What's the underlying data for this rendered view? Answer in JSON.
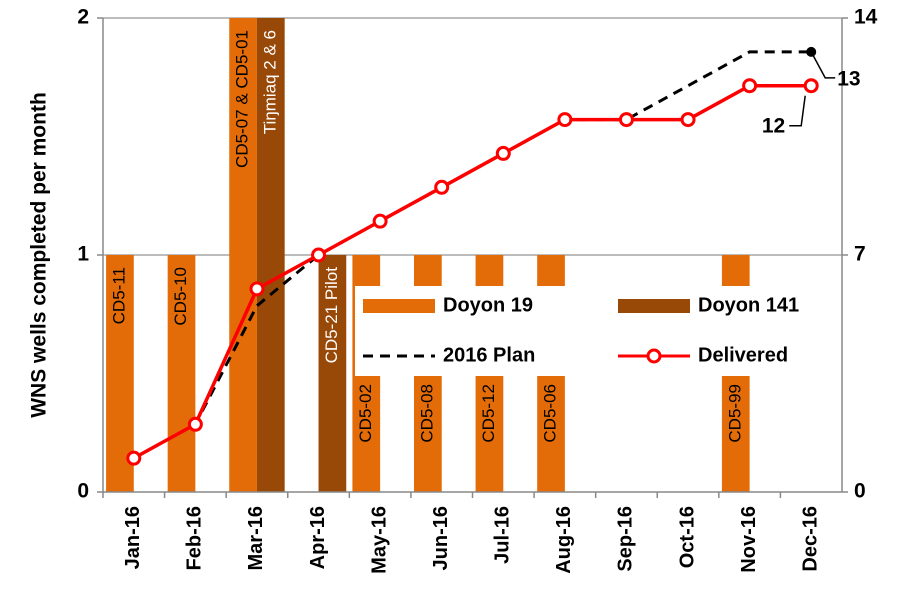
{
  "chart_data": {
    "type": "bar_line",
    "y_label": "WNS wells completed per month",
    "categories": [
      "Jan-16",
      "Feb-16",
      "Mar-16",
      "Apr-16",
      "May-16",
      "Jun-16",
      "Jul-16",
      "Aug-16",
      "Sep-16",
      "Oct-16",
      "Nov-16",
      "Dec-16"
    ],
    "ylim": [
      0,
      2
    ],
    "yticks": [
      0,
      1,
      2
    ],
    "y2lim": [
      0,
      14
    ],
    "y2ticks": [
      0,
      7,
      14
    ],
    "grid": true,
    "series": [
      {
        "name": "Doyon 19",
        "kind": "bar",
        "color": "#e36c09",
        "values": [
          1,
          1,
          2,
          0,
          1,
          1,
          1,
          1,
          0,
          0,
          1,
          0
        ],
        "labels": [
          "CD5-11",
          "CD5-10",
          "CD5-07 & CD5-01",
          null,
          "CD5-02",
          "CD5-08",
          "CD5-12",
          "CD5-06",
          null,
          null,
          "CD5-99",
          null
        ]
      },
      {
        "name": "Doyon 141",
        "kind": "bar",
        "color": "#984807",
        "values": [
          0,
          0,
          2,
          1,
          0,
          0,
          0,
          0,
          0,
          0,
          0,
          0
        ],
        "labels": [
          null,
          null,
          "Tiŋmiaq 2 & 6",
          "CD5-21 Pilot",
          null,
          null,
          null,
          null,
          null,
          null,
          null,
          null
        ]
      },
      {
        "name": "2016 Plan",
        "kind": "line",
        "dashed": true,
        "color": "#000000",
        "axis": "y2",
        "values": [
          1,
          2,
          5.5,
          7,
          8,
          9,
          10,
          11,
          11,
          12,
          13,
          13
        ]
      },
      {
        "name": "Delivered",
        "kind": "line",
        "markers": true,
        "color": "#ff0000",
        "axis": "y2",
        "values": [
          1,
          2,
          6,
          7,
          8,
          9,
          10,
          11,
          11,
          11,
          12,
          12
        ]
      }
    ],
    "annotations": [
      {
        "text": "13",
        "series": 2,
        "index": 11
      },
      {
        "text": "12",
        "series": 3,
        "index": 11
      }
    ]
  }
}
